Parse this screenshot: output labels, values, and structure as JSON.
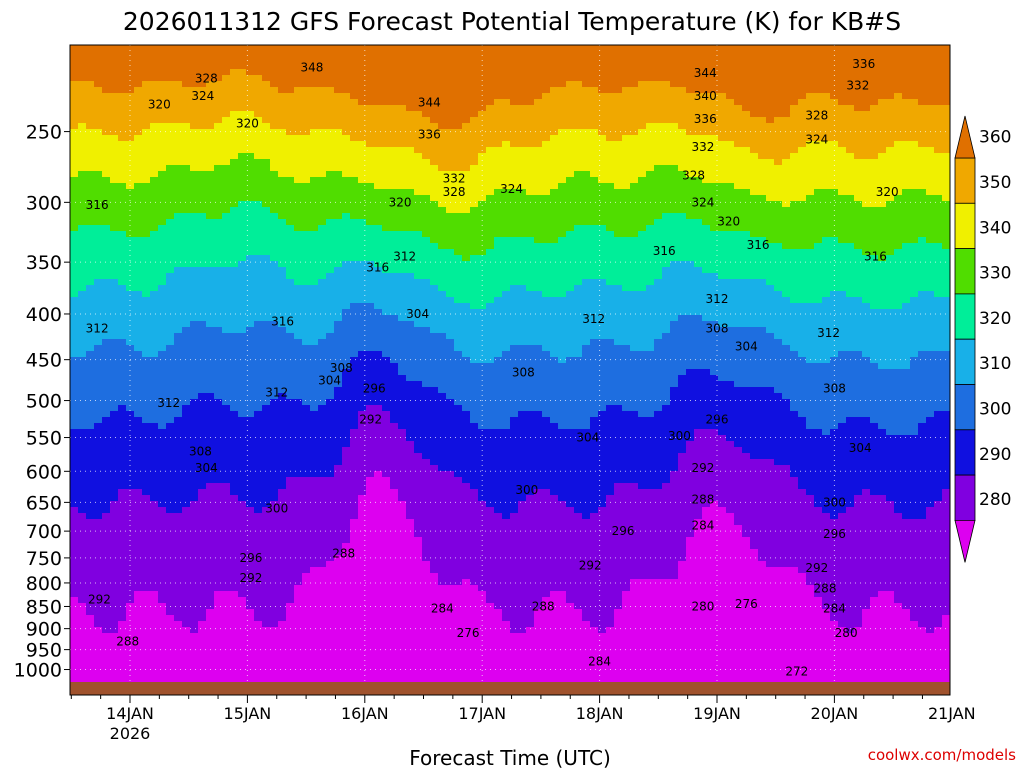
{
  "chart_data": {
    "type": "heatmap",
    "title": "2026011312 GFS Forecast Potential Temperature (K) for KB#S",
    "xlabel": "Forecast Time (UTC)",
    "ylabel": "",
    "credit": "coolwx.com/models",
    "x_ticks": [
      {
        "value": 1,
        "label": "14JAN",
        "sublabel": "2026"
      },
      {
        "value": 2,
        "label": "15JAN"
      },
      {
        "value": 3,
        "label": "16JAN"
      },
      {
        "value": 4,
        "label": "17JAN"
      },
      {
        "value": 5,
        "label": "18JAN"
      },
      {
        "value": 6,
        "label": "19JAN"
      },
      {
        "value": 7,
        "label": "20JAN"
      },
      {
        "value": 8,
        "label": "21JAN"
      }
    ],
    "xlim": [
      0.6,
      8.0
    ],
    "y_ticks": [
      250,
      300,
      350,
      400,
      450,
      500,
      550,
      600,
      650,
      700,
      750,
      800,
      850,
      900,
      950,
      1000
    ],
    "ylim": [
      200,
      1030
    ],
    "y_scale": "log-pressure",
    "colorbar": {
      "levels": [
        280,
        290,
        300,
        310,
        320,
        330,
        340,
        350,
        360
      ],
      "colors": [
        "#dd00f0",
        "#8000e0",
        "#1010e0",
        "#1e6ee0",
        "#18b0e8",
        "#00ee99",
        "#50dd00",
        "#f0f000",
        "#f0a800",
        "#e07000"
      ]
    },
    "contour_labels": [
      {
        "t": 1.65,
        "p": 218,
        "v": "328"
      },
      {
        "t": 1.62,
        "p": 228,
        "v": "324"
      },
      {
        "t": 1.25,
        "p": 233,
        "v": "320"
      },
      {
        "t": 2.0,
        "p": 245,
        "v": "320"
      },
      {
        "t": 0.72,
        "p": 302,
        "v": "316"
      },
      {
        "t": 0.72,
        "p": 415,
        "v": "312"
      },
      {
        "t": 2.55,
        "p": 212,
        "v": "348"
      },
      {
        "t": 3.55,
        "p": 232,
        "v": "344"
      },
      {
        "t": 3.55,
        "p": 252,
        "v": "336"
      },
      {
        "t": 3.76,
        "p": 282,
        "v": "332"
      },
      {
        "t": 3.76,
        "p": 292,
        "v": "328"
      },
      {
        "t": 4.25,
        "p": 290,
        "v": "324"
      },
      {
        "t": 3.3,
        "p": 300,
        "v": "320"
      },
      {
        "t": 3.11,
        "p": 355,
        "v": "316"
      },
      {
        "t": 3.34,
        "p": 345,
        "v": "312"
      },
      {
        "t": 2.3,
        "p": 408,
        "v": "316"
      },
      {
        "t": 1.33,
        "p": 503,
        "v": "312"
      },
      {
        "t": 2.25,
        "p": 490,
        "v": "312"
      },
      {
        "t": 2.8,
        "p": 460,
        "v": "308"
      },
      {
        "t": 2.7,
        "p": 475,
        "v": "304"
      },
      {
        "t": 3.45,
        "p": 400,
        "v": "304"
      },
      {
        "t": 3.08,
        "p": 485,
        "v": "296"
      },
      {
        "t": 3.05,
        "p": 525,
        "v": "292"
      },
      {
        "t": 1.6,
        "p": 570,
        "v": "308"
      },
      {
        "t": 1.65,
        "p": 595,
        "v": "304"
      },
      {
        "t": 2.25,
        "p": 660,
        "v": "300"
      },
      {
        "t": 2.03,
        "p": 750,
        "v": "296"
      },
      {
        "t": 2.03,
        "p": 790,
        "v": "292"
      },
      {
        "t": 2.82,
        "p": 742,
        "v": "288"
      },
      {
        "t": 0.74,
        "p": 835,
        "v": "292"
      },
      {
        "t": 0.98,
        "p": 930,
        "v": "288"
      },
      {
        "t": 4.35,
        "p": 465,
        "v": "308"
      },
      {
        "t": 4.95,
        "p": 405,
        "v": "312"
      },
      {
        "t": 5.55,
        "p": 340,
        "v": "316"
      },
      {
        "t": 4.9,
        "p": 550,
        "v": "304"
      },
      {
        "t": 4.38,
        "p": 630,
        "v": "300"
      },
      {
        "t": 5.2,
        "p": 700,
        "v": "296"
      },
      {
        "t": 4.92,
        "p": 765,
        "v": "292"
      },
      {
        "t": 4.52,
        "p": 850,
        "v": "288"
      },
      {
        "t": 3.66,
        "p": 855,
        "v": "284"
      },
      {
        "t": 3.88,
        "p": 910,
        "v": "276"
      },
      {
        "t": 5.0,
        "p": 980,
        "v": "284"
      },
      {
        "t": 5.9,
        "p": 215,
        "v": "344"
      },
      {
        "t": 5.9,
        "p": 228,
        "v": "340"
      },
      {
        "t": 5.9,
        "p": 242,
        "v": "336"
      },
      {
        "t": 5.88,
        "p": 260,
        "v": "332"
      },
      {
        "t": 5.8,
        "p": 280,
        "v": "328"
      },
      {
        "t": 5.88,
        "p": 300,
        "v": "324"
      },
      {
        "t": 6.1,
        "p": 315,
        "v": "320"
      },
      {
        "t": 6.35,
        "p": 335,
        "v": "316"
      },
      {
        "t": 6.0,
        "p": 385,
        "v": "312"
      },
      {
        "t": 6.0,
        "p": 415,
        "v": "308"
      },
      {
        "t": 6.25,
        "p": 435,
        "v": "304"
      },
      {
        "t": 5.68,
        "p": 548,
        "v": "300"
      },
      {
        "t": 6.0,
        "p": 525,
        "v": "296"
      },
      {
        "t": 5.88,
        "p": 595,
        "v": "292"
      },
      {
        "t": 5.88,
        "p": 645,
        "v": "288"
      },
      {
        "t": 5.88,
        "p": 690,
        "v": "284"
      },
      {
        "t": 5.88,
        "p": 850,
        "v": "280"
      },
      {
        "t": 6.25,
        "p": 845,
        "v": "276"
      },
      {
        "t": 6.68,
        "p": 1005,
        "v": "272"
      },
      {
        "t": 7.25,
        "p": 210,
        "v": "336"
      },
      {
        "t": 7.2,
        "p": 222,
        "v": "332"
      },
      {
        "t": 6.85,
        "p": 240,
        "v": "328"
      },
      {
        "t": 6.85,
        "p": 255,
        "v": "324"
      },
      {
        "t": 7.45,
        "p": 292,
        "v": "320"
      },
      {
        "t": 7.35,
        "p": 345,
        "v": "316"
      },
      {
        "t": 6.95,
        "p": 420,
        "v": "312"
      },
      {
        "t": 7.0,
        "p": 485,
        "v": "308"
      },
      {
        "t": 7.22,
        "p": 565,
        "v": "304"
      },
      {
        "t": 7.0,
        "p": 650,
        "v": "300"
      },
      {
        "t": 7.0,
        "p": 705,
        "v": "296"
      },
      {
        "t": 6.85,
        "p": 770,
        "v": "292"
      },
      {
        "t": 6.92,
        "p": 812,
        "v": "288"
      },
      {
        "t": 7.0,
        "p": 855,
        "v": "284"
      },
      {
        "t": 7.1,
        "p": 910,
        "v": "280"
      }
    ]
  }
}
